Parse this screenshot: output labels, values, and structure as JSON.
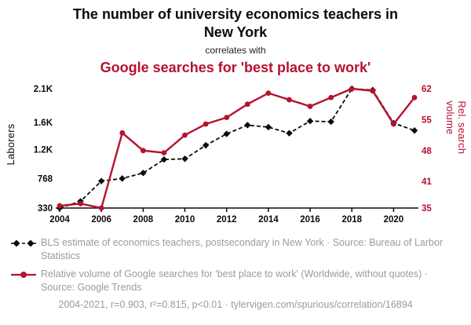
{
  "accent_red": "#b5122f",
  "header": {
    "title": "The number of university economics teachers in New York",
    "connector": "correlates with",
    "subtitle": "Google searches for 'best place to work'"
  },
  "legend": {
    "black_series": "BLS estimate of economics teachers, postsecondary in New York · Source: Bureau of Larbor Statistics",
    "red_series": "Relative volume of Google searches for 'best place to work' (Worldwide, without quotes) · Source: Google Trends"
  },
  "footer": "2004-2021, r=0.903, r²=0.815, p<0.01 · tylervigen.com/spurious/correlation/16894",
  "chart_data": {
    "type": "line",
    "title": "The number of university economics teachers in New York",
    "subtitle": "Google searches for 'best place to work'",
    "x": [
      2004,
      2005,
      2006,
      2007,
      2008,
      2009,
      2010,
      2011,
      2012,
      2013,
      2014,
      2015,
      2016,
      2017,
      2018,
      2019,
      2020,
      2021
    ],
    "x_tick_labels": [
      "2004",
      "2006",
      "2008",
      "2010",
      "2012",
      "2014",
      "2016",
      "2018",
      "2020"
    ],
    "left_axis": {
      "label": "Laborers",
      "range": [
        330,
        2100
      ],
      "ticks": [
        330,
        768,
        1200,
        1600,
        2100
      ],
      "tick_labels": [
        "330",
        "768",
        "1.2K",
        "1.6K",
        "2.1K"
      ]
    },
    "right_axis": {
      "label": "Rel. search volume",
      "range": [
        35,
        62
      ],
      "ticks": [
        35,
        41,
        48,
        55,
        62
      ],
      "tick_labels": [
        "35",
        "41",
        "48",
        "55",
        "62"
      ]
    },
    "series": [
      {
        "name": "BLS estimate of economics teachers, postsecondary in New York",
        "axis": "left",
        "color": "#0b0b0b",
        "style": "dashed-diamond",
        "values": [
          330,
          430,
          730,
          768,
          850,
          1050,
          1060,
          1260,
          1430,
          1560,
          1530,
          1440,
          1620,
          1610,
          2100,
          2080,
          1590,
          1480
        ]
      },
      {
        "name": "Relative volume of Google searches for 'best place to work'",
        "axis": "right",
        "color": "#b5122f",
        "style": "solid-circle",
        "values": [
          35.5,
          36,
          35,
          52,
          48,
          47.5,
          51.5,
          54,
          55.5,
          58.5,
          61,
          59.5,
          58,
          60,
          62,
          61.5,
          54,
          60
        ]
      }
    ],
    "grid": false,
    "legend_position": "bottom"
  }
}
